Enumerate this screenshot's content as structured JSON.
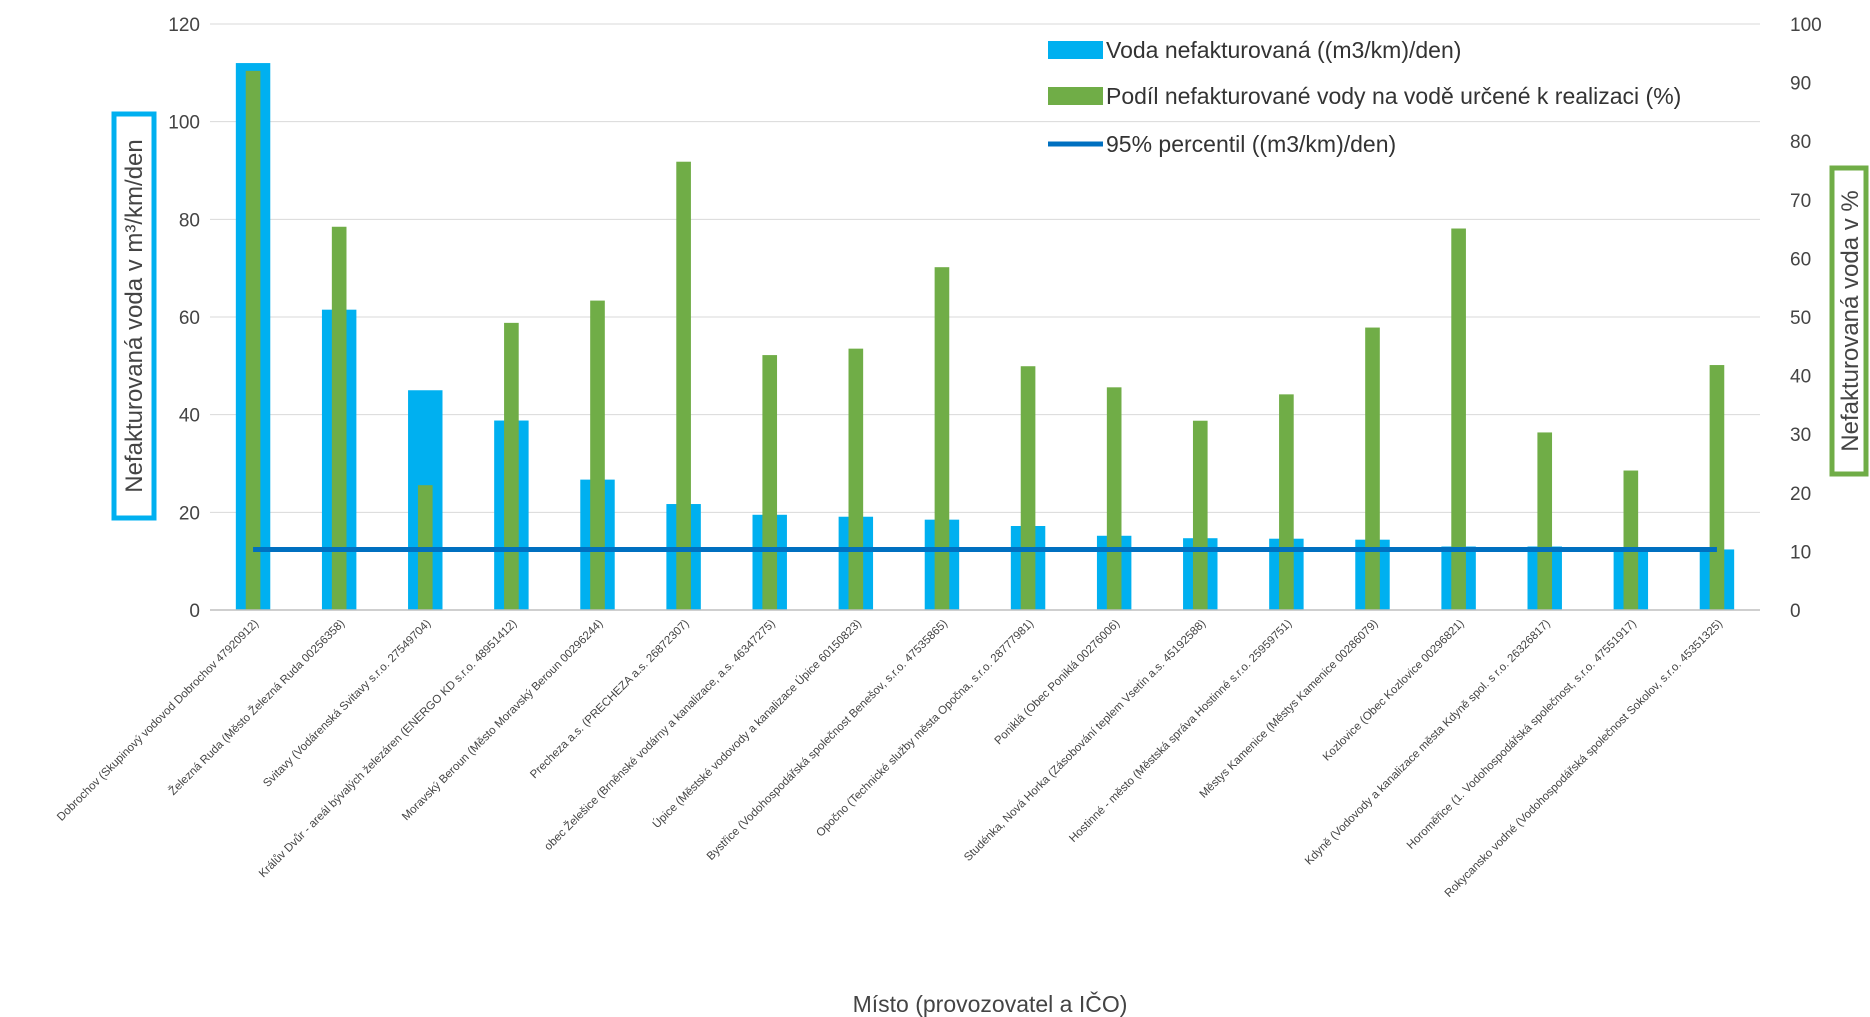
{
  "chart_data": {
    "type": "bar",
    "xlabel": "Místo (provozovatel a IČO)",
    "ylabel": "Nefakturovaná voda v m³/km/den",
    "y2label": "Nefakturovaná voda v %",
    "ylim": [
      0,
      120
    ],
    "y2lim": [
      0,
      100
    ],
    "yticks": [
      "0",
      "20",
      "40",
      "60",
      "80",
      "100",
      "120"
    ],
    "y2ticks": [
      "0",
      "10",
      "20",
      "30",
      "40",
      "50",
      "60",
      "70",
      "80",
      "90",
      "100"
    ],
    "grid": true,
    "legend_position": "top-right",
    "categories": [
      "Dobrochov (Skupinový vodovod Dobrochov 47920912)",
      "Železná Ruda (Město Železná Ruda 00256358)",
      "Svitavy (Vodárenská Svitavy s.r.o. 27549704)",
      "Králův Dvůr - areál bývalých železáren (ENERGO KD s.r.o. 48951412)",
      "Moravský Beroun (Město Moravský Beroun 00296244)",
      "Precheza a.s. (PRECHEZA a.s. 26872307)",
      "obec Želešice (Brněnské vodárny a kanalizace, a.s. 46347275)",
      "Úpice (Městské vodovody a kanalizace Úpice 60150823)",
      "Bystřice (Vodohospodářská společnost Benešov, s.r.o. 47535865)",
      "Opočno (Technické služby města Opočna, s.r.o. 28777981)",
      "Poniklá (Obec Poniklá 00276006)",
      "Studénka, Nová Horka (Zásobování teplem Vsetín a.s. 45192588)",
      "Hostinné - město (Městská správa Hostinné s.r.o. 25959751)",
      "Městys Kamenice (Městys Kamenice 00286079)",
      "Kozlovice (Obec Kozlovice 00296821)",
      "Kdyně (Vodovody a kanalizace města Kdyně spol. s r.o. 26326817)",
      "Horoměřice (1. Vodohospodářská společnost, s.r.o. 47551917)",
      "Rokycansko vodné (Vodohospodářská společnost Sokolov, s.r.o. 45351325)"
    ],
    "series": [
      {
        "name": "Voda nefakturovaná ((m3/km)/den)",
        "kind": "bar",
        "axis": "left",
        "color": "#00B0F0",
        "values": [
          112,
          61.5,
          45,
          38.8,
          26.7,
          21.7,
          19.5,
          19.1,
          18.5,
          17.2,
          15.2,
          14.7,
          14.6,
          14.4,
          13,
          13,
          12.8,
          12.4
        ]
      },
      {
        "name": "Podíl nefakturované vody na vodě určené k realizaci (%)",
        "kind": "bar",
        "axis": "right",
        "color": "#70AD47",
        "values": [
          92,
          65.4,
          21.3,
          49,
          52.8,
          76.5,
          43.5,
          44.6,
          58.5,
          41.6,
          38,
          32.3,
          36.8,
          48.2,
          65.1,
          30.3,
          23.8,
          41.8
        ]
      },
      {
        "name": "95% percentil ((m3/km)/den)",
        "kind": "line",
        "axis": "left",
        "color": "#0070C0",
        "values": [
          12.4,
          12.4,
          12.4,
          12.4,
          12.4,
          12.4,
          12.4,
          12.4,
          12.4,
          12.4,
          12.4,
          12.4,
          12.4,
          12.4,
          12.4,
          12.4,
          12.4,
          12.4
        ]
      }
    ],
    "ylabel_box_color": "#00B0F0",
    "y2label_box_color": "#70AD47"
  }
}
